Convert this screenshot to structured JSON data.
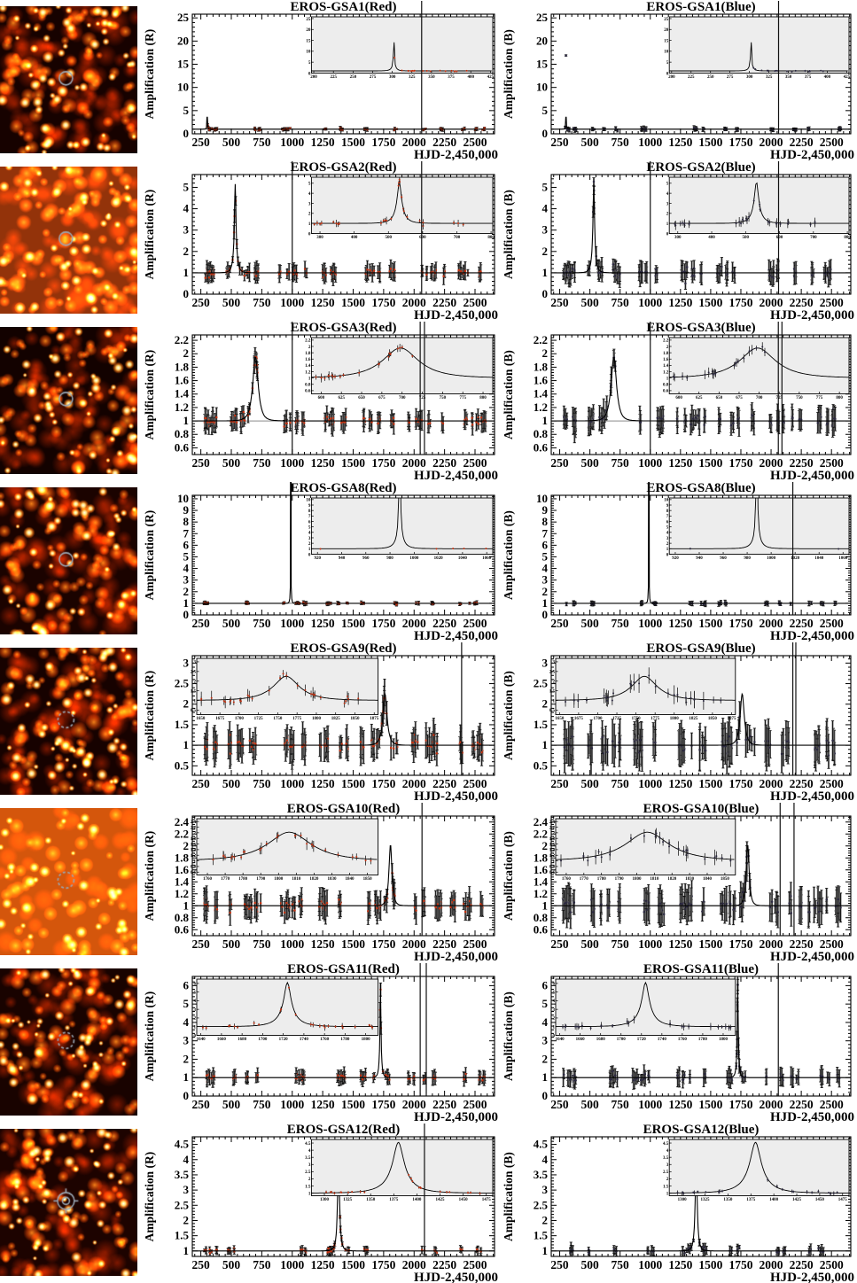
{
  "figure": {
    "xlabel": "HJD-2,450,000",
    "xlim": [
      180,
      2660
    ],
    "x_major_ticks": [
      250,
      500,
      750,
      1000,
      1250,
      1500,
      1750,
      2000,
      2250,
      2500
    ],
    "x_minor_step": 50,
    "baseline": 1,
    "curve_color": "#000000",
    "inset_bg": "#ededed",
    "seasons": [
      [
        275,
        385
      ],
      [
        460,
        760
      ],
      [
        850,
        1120
      ],
      [
        1220,
        1460
      ],
      [
        1550,
        1865
      ],
      [
        1950,
        2255
      ],
      [
        2300,
        2590
      ]
    ],
    "bands": [
      {
        "key": "red",
        "suffix": "(Red)",
        "ylabel": "Amplification (R)",
        "point_color": "#c23110",
        "err_mult": 1.0
      },
      {
        "key": "blue",
        "suffix": "(Blue)",
        "ylabel": "Amplification (B)",
        "point_color": "#2b2840",
        "err_mult": 1.25
      }
    ]
  },
  "chart_data": [
    {
      "type": "line",
      "event": "EROS-GSA1",
      "seed": 11,
      "title_red": "EROS-GSA1(Red)",
      "title_blue": "EROS-GSA1(Blue)",
      "xlabel": "HJD-2,450,000",
      "ylim": [
        0,
        25.8
      ],
      "yticks": [
        0,
        5,
        10,
        15,
        20,
        25
      ],
      "model": {
        "t0": 302,
        "tE": 7,
        "amax": 23
      },
      "points": {
        "per_season": 10,
        "err": 0.28,
        "noise": 0.1
      },
      "inset": {
        "pos": "right",
        "xlim": [
          197,
          428
        ],
        "xticks": [
          200,
          225,
          250,
          275,
          300,
          325,
          350,
          375,
          400,
          425
        ],
        "coverage": [
          [
            295,
            395
          ]
        ],
        "n": 18
      },
      "tall_lines": {
        "red": [
          2062
        ],
        "blue": [
          2062
        ]
      },
      "gap": null,
      "overshoot": false
    },
    {
      "type": "line",
      "event": "EROS-GSA2",
      "seed": 22,
      "title_red": "EROS-GSA2(Red)",
      "title_blue": "EROS-GSA2(Blue)",
      "xlabel": "HJD-2,450,000",
      "ylim": [
        0,
        5.6
      ],
      "yticks": [
        0,
        1,
        2,
        3,
        4,
        5
      ],
      "model": {
        "t0": 532,
        "tE": 30,
        "amax": 5.15
      },
      "points": {
        "per_season": 20,
        "err": 0.3,
        "noise": 0.1
      },
      "inset": {
        "pos": "right",
        "xlim": [
          275,
          805
        ],
        "xticks": [
          300,
          400,
          500,
          600,
          700,
          800
        ],
        "coverage": [
          [
            280,
            360
          ],
          [
            470,
            630
          ],
          [
            690,
            720
          ]
        ],
        "n": 30
      },
      "tall_lines": {
        "red": [
          1000,
          2062
        ],
        "blue": [
          1000,
          2062
        ]
      },
      "gap": null,
      "overshoot": false
    },
    {
      "type": "line",
      "event": "EROS-GSA3",
      "seed": 33,
      "title_red": "EROS-GSA3(Red)",
      "title_blue": "EROS-GSA3(Blue)",
      "xlabel": "HJD-2,450,000",
      "ylim": [
        0.5,
        2.28
      ],
      "yticks": [
        0.6,
        0.8,
        1,
        1.2,
        1.4,
        1.6,
        1.8,
        2,
        2.2
      ],
      "model": {
        "t0": 698,
        "tE": 42,
        "amax": 1.95
      },
      "points": {
        "per_season": 26,
        "err": 0.11,
        "noise": 0.035
      },
      "inset": {
        "pos": "right",
        "xlim": [
          588,
          812
        ],
        "xticks": [
          600,
          625,
          650,
          675,
          700,
          725,
          750,
          775,
          800
        ],
        "coverage": [
          [
            590,
            650
          ],
          [
            668,
            715
          ]
        ],
        "n": 22
      },
      "tall_lines": {
        "red": [
          1000,
          2050,
          2085
        ],
        "blue": [
          1000,
          2060,
          2090
        ]
      },
      "gap": null,
      "overshoot": false
    },
    {
      "type": "line",
      "event": "EROS-GSA8",
      "seed": 44,
      "title_red": "EROS-GSA8(Red)",
      "title_blue": "EROS-GSA8(Blue)",
      "xlabel": "HJD-2,450,000",
      "ylim": [
        0,
        10.3
      ],
      "yticks": [
        0,
        1,
        2,
        3,
        4,
        5,
        6,
        7,
        8,
        9,
        10
      ],
      "model": {
        "t0": 988,
        "tE": 9,
        "amax": 30
      },
      "points": {
        "per_season": 10,
        "err": 0.12,
        "noise": 0.04
      },
      "inset": {
        "pos": "right",
        "xlim": [
          915,
          1065
        ],
        "xticks": [
          920,
          940,
          960,
          980,
          1000,
          1020,
          1040,
          1060
        ],
        "coverage": [
          [
            922,
            940
          ],
          [
            1005,
            1060
          ]
        ],
        "n": 6
      },
      "tall_lines": {
        "red": [],
        "blue": [
          2180
        ]
      },
      "gap": [
        955,
        1015
      ],
      "overshoot": true
    },
    {
      "type": "line",
      "event": "EROS-GSA9",
      "seed": 55,
      "title_red": "EROS-GSA9(Red)",
      "title_blue": "EROS-GSA9(Blue)",
      "xlabel": "HJD-2,450,000",
      "ylim": [
        0.27,
        3.18
      ],
      "yticks": [
        0.5,
        1,
        1.5,
        2,
        2.5,
        3
      ],
      "model": {
        "t0": 1761,
        "tE": 36,
        "amax": 2.25
      },
      "points": {
        "per_season": 26,
        "err": 0.3,
        "noise": 0.09
      },
      "inset": {
        "pos": "left",
        "xlim": [
          1645,
          1880
        ],
        "xticks": [
          1650,
          1675,
          1700,
          1725,
          1750,
          1775,
          1800,
          1825,
          1850,
          1875
        ],
        "coverage": [
          [
            1650,
            1875
          ]
        ],
        "n": 30
      },
      "tall_lines": {
        "red": [
          2390
        ],
        "blue": [
          2180,
          2205
        ]
      },
      "gap": null,
      "overshoot": false
    },
    {
      "type": "line",
      "event": "EROS-GSA10",
      "seed": 66,
      "title_red": "EROS-GSA10(Red)",
      "title_blue": "EROS-GSA10(Blue)",
      "xlabel": "HJD-2,450,000",
      "ylim": [
        0.5,
        2.5
      ],
      "yticks": [
        0.6,
        0.8,
        1,
        1.2,
        1.4,
        1.6,
        1.8,
        2,
        2.2,
        2.4
      ],
      "model": {
        "t0": 1806,
        "tE": 24,
        "amax": 2.02
      },
      "points": {
        "per_season": 26,
        "err": 0.17,
        "noise": 0.05
      },
      "inset": {
        "pos": "left",
        "xlim": [
          1754,
          1856
        ],
        "xticks": [
          1760,
          1770,
          1780,
          1790,
          1800,
          1810,
          1820,
          1830,
          1840,
          1850
        ],
        "coverage": [
          [
            1756,
            1854
          ]
        ],
        "n": 28
      },
      "tall_lines": {
        "red": [
          2065
        ],
        "blue": [
          2075,
          2190
        ]
      },
      "gap": null,
      "overshoot": false
    },
    {
      "type": "line",
      "event": "EROS-GSA11",
      "seed": 77,
      "title_red": "EROS-GSA11(Red)",
      "title_blue": "EROS-GSA11(Blue)",
      "xlabel": "HJD-2,450,000",
      "ylim": [
        0,
        6.5
      ],
      "yticks": [
        0,
        1,
        2,
        3,
        4,
        5,
        6
      ],
      "model": {
        "t0": 1724,
        "tE": 20,
        "amax": 6.1
      },
      "points": {
        "per_season": 18,
        "err": 0.28,
        "noise": 0.09
      },
      "inset": {
        "pos": "left",
        "xlim": [
          1636,
          1812
        ],
        "xticks": [
          1640,
          1660,
          1680,
          1700,
          1720,
          1740,
          1760,
          1780,
          1800
        ],
        "coverage": [
          [
            1640,
            1810
          ]
        ],
        "n": 26
      },
      "tall_lines": {
        "red": [
          2050,
          2100
        ],
        "blue": [
          2060
        ]
      },
      "gap": null,
      "overshoot": false
    },
    {
      "type": "line",
      "event": "EROS-GSA12",
      "seed": 88,
      "title_red": "EROS-GSA12(Red)",
      "title_blue": "EROS-GSA12(Blue)",
      "xlabel": "HJD-2,450,000",
      "ylim": [
        0.82,
        4.75
      ],
      "yticks": [
        1,
        1.5,
        2,
        2.5,
        3,
        3.5,
        4,
        4.5
      ],
      "model": {
        "t0": 1380,
        "tE": 26,
        "amax": 4.55
      },
      "points": {
        "per_season": 10,
        "err": 0.1,
        "noise": 0.035
      },
      "inset": {
        "pos": "right",
        "xlim": [
          1286,
          1482
        ],
        "xticks": [
          1300,
          1325,
          1350,
          1375,
          1400,
          1425,
          1450,
          1475
        ],
        "coverage": [
          [
            1295,
            1360
          ],
          [
            1390,
            1470
          ]
        ],
        "n": 22
      },
      "tall_lines": {
        "red": [
          2085
        ],
        "blue": []
      },
      "gap": null,
      "overshoot": false
    }
  ],
  "thumbnails": [
    {
      "name": "finding-chart-eros-gsa1",
      "seed": 101,
      "bg": "#170200",
      "big": 85,
      "mid": 75,
      "bright": 60,
      "marker": "circle",
      "marker_color": "#9aa7b4"
    },
    {
      "name": "finding-chart-eros-gsa2",
      "seed": 202,
      "bg": "#93330a",
      "big": 55,
      "mid": 85,
      "bright": 45,
      "marker": "circle",
      "marker_color": "#9aa7b4"
    },
    {
      "name": "finding-chart-eros-gsa3",
      "seed": 303,
      "bg": "#130200",
      "big": 75,
      "mid": 65,
      "bright": 55,
      "marker": "circle",
      "marker_color": "#9aa7b4"
    },
    {
      "name": "finding-chart-eros-gsa8",
      "seed": 404,
      "bg": "#1b0300",
      "big": 80,
      "mid": 70,
      "bright": 48,
      "marker": "circle",
      "marker_color": "#9aa7b4"
    },
    {
      "name": "finding-chart-eros-gsa9",
      "seed": 505,
      "bg": "#170200",
      "big": 85,
      "mid": 72,
      "bright": 58,
      "marker": "dashed",
      "marker_color": "#9aa7b4"
    },
    {
      "name": "finding-chart-eros-gsa10",
      "seed": 606,
      "bg": "#d4560c",
      "big": 30,
      "mid": 45,
      "bright": 38,
      "marker": "dashed",
      "marker_color": "#9aa7b4"
    },
    {
      "name": "finding-chart-eros-gsa11",
      "seed": 707,
      "bg": "#190300",
      "big": 78,
      "mid": 70,
      "bright": 52,
      "marker": "dashed",
      "marker_color": "#9aa7b4"
    },
    {
      "name": "finding-chart-eros-gsa12",
      "seed": 808,
      "bg": "#1d0300",
      "big": 72,
      "mid": 74,
      "bright": 54,
      "marker": "reticle",
      "marker_color": "#9aa7b4"
    }
  ]
}
